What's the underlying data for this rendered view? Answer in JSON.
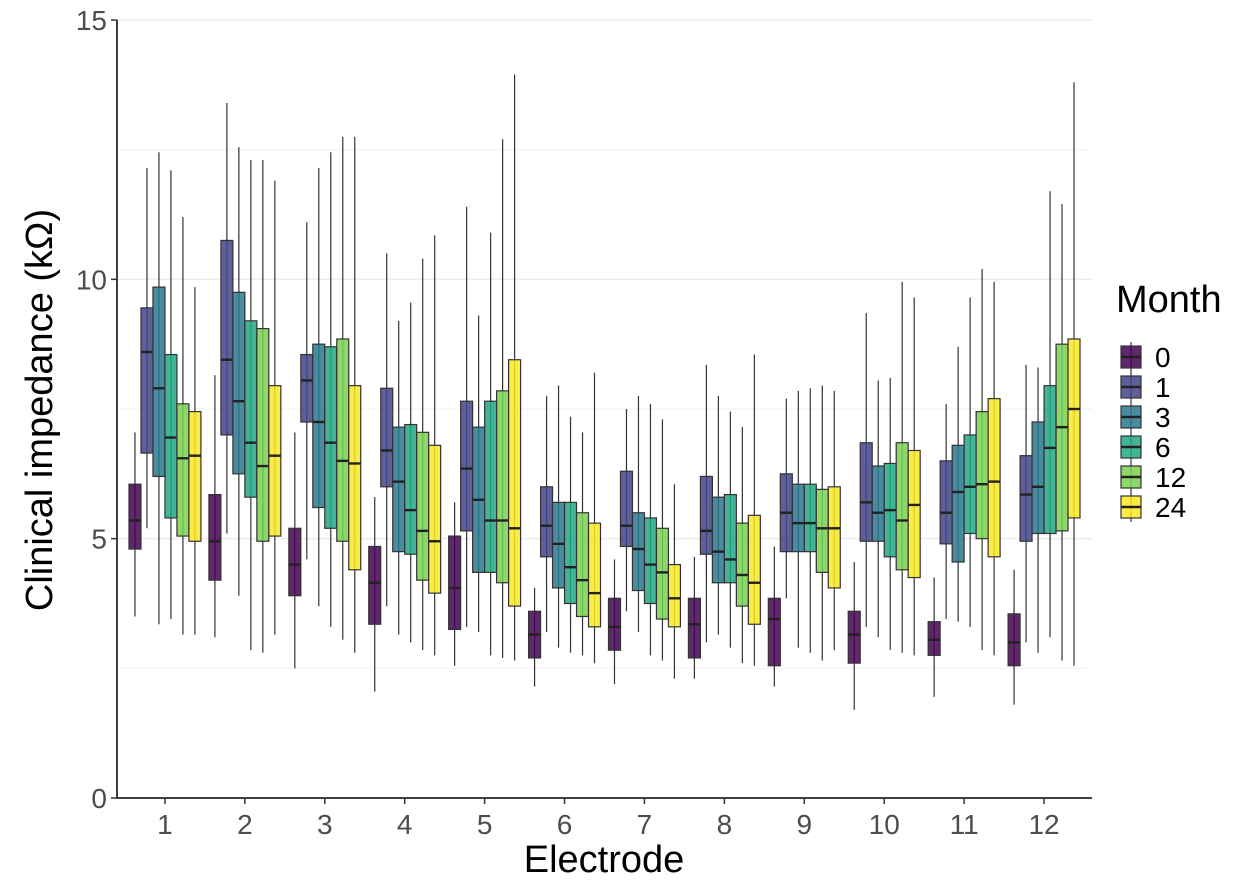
{
  "chart_data": {
    "type": "boxplot",
    "xlabel": "Electrode",
    "ylabel": "Clinical impedance (kΩ)",
    "ylim": [
      0,
      15
    ],
    "yticks": [
      "0",
      "5",
      "10",
      "15"
    ],
    "grid": "horizontal-major-and-minor",
    "categories": [
      "1",
      "2",
      "3",
      "4",
      "5",
      "6",
      "7",
      "8",
      "9",
      "10",
      "11",
      "12"
    ],
    "legend": {
      "title": "Month",
      "position": "right"
    },
    "series": [
      {
        "name": "0",
        "color": "#440154",
        "boxes": [
          [
            3.5,
            4.8,
            5.35,
            6.05,
            7.05
          ],
          [
            3.1,
            4.2,
            4.95,
            5.85,
            8.15
          ],
          [
            2.5,
            3.9,
            4.5,
            5.2,
            7.05
          ],
          [
            2.05,
            3.35,
            4.15,
            4.85,
            5.8
          ],
          [
            2.55,
            3.25,
            4.05,
            5.05,
            5.7
          ],
          [
            2.15,
            2.7,
            3.15,
            3.6,
            4.05
          ],
          [
            2.2,
            2.85,
            3.3,
            3.85,
            4.6
          ],
          [
            2.3,
            2.7,
            3.35,
            3.85,
            4.65
          ],
          [
            2.15,
            2.55,
            3.45,
            3.85,
            4.85
          ],
          [
            1.7,
            2.6,
            3.15,
            3.6,
            4.55
          ],
          [
            1.95,
            2.75,
            3.05,
            3.4,
            4.25
          ],
          [
            1.8,
            2.55,
            3.0,
            3.55,
            4.4
          ]
        ]
      },
      {
        "name": "1",
        "color": "#414487",
        "boxes": [
          [
            5.2,
            6.65,
            8.6,
            9.45,
            12.15
          ],
          [
            5.1,
            7.0,
            8.45,
            10.75,
            13.4
          ],
          [
            4.6,
            7.25,
            8.05,
            8.55,
            11.1
          ],
          [
            3.7,
            6.0,
            6.7,
            7.9,
            10.5
          ],
          [
            3.3,
            5.15,
            6.35,
            7.65,
            11.4
          ],
          [
            3.2,
            4.65,
            5.25,
            6.0,
            7.75
          ],
          [
            3.6,
            4.85,
            5.25,
            6.3,
            7.5
          ],
          [
            3.0,
            4.7,
            5.15,
            6.2,
            8.35
          ],
          [
            3.85,
            4.75,
            5.5,
            6.25,
            7.7
          ],
          [
            3.3,
            4.95,
            5.7,
            6.85,
            9.35
          ],
          [
            3.45,
            4.9,
            5.5,
            6.5,
            7.6
          ],
          [
            3.0,
            4.95,
            5.85,
            6.6,
            8.35
          ]
        ]
      },
      {
        "name": "3",
        "color": "#2a788e",
        "boxes": [
          [
            3.35,
            6.2,
            7.9,
            9.85,
            12.45
          ],
          [
            3.9,
            6.25,
            7.65,
            9.75,
            12.55
          ],
          [
            3.7,
            5.6,
            7.25,
            8.75,
            12.15
          ],
          [
            3.15,
            4.75,
            6.1,
            7.15,
            9.2
          ],
          [
            3.2,
            4.35,
            5.75,
            7.15,
            9.3
          ],
          [
            2.9,
            4.05,
            4.9,
            5.7,
            7.95
          ],
          [
            3.2,
            4.0,
            4.8,
            5.5,
            7.75
          ],
          [
            3.15,
            4.15,
            4.75,
            5.8,
            7.75
          ],
          [
            2.9,
            4.75,
            5.3,
            6.05,
            7.85
          ],
          [
            3.1,
            4.95,
            5.5,
            6.4,
            8.05
          ],
          [
            3.4,
            4.55,
            5.9,
            6.8,
            8.7
          ],
          [
            2.8,
            5.1,
            6.0,
            7.25,
            8.3
          ]
        ]
      },
      {
        "name": "6",
        "color": "#22a884",
        "boxes": [
          [
            3.45,
            5.4,
            6.95,
            8.55,
            12.1
          ],
          [
            2.85,
            5.8,
            6.85,
            9.2,
            12.3
          ],
          [
            3.3,
            5.2,
            6.85,
            8.7,
            12.45
          ],
          [
            3.0,
            4.7,
            5.55,
            7.2,
            9.55
          ],
          [
            2.75,
            4.35,
            5.35,
            7.65,
            10.9
          ],
          [
            2.8,
            3.75,
            4.45,
            5.7,
            7.35
          ],
          [
            2.75,
            3.75,
            4.5,
            5.4,
            7.6
          ],
          [
            2.9,
            4.15,
            4.6,
            5.85,
            7.45
          ],
          [
            2.8,
            4.75,
            5.3,
            6.05,
            7.9
          ],
          [
            2.85,
            4.65,
            5.55,
            6.45,
            8.1
          ],
          [
            3.3,
            5.1,
            6.0,
            7.0,
            9.65
          ],
          [
            3.1,
            5.1,
            6.75,
            7.95,
            11.7
          ]
        ]
      },
      {
        "name": "12",
        "color": "#7ad151",
        "boxes": [
          [
            3.15,
            5.05,
            6.55,
            7.6,
            11.2
          ],
          [
            2.8,
            4.95,
            6.4,
            9.05,
            12.3
          ],
          [
            3.05,
            4.95,
            6.5,
            8.85,
            12.75
          ],
          [
            2.85,
            4.2,
            5.15,
            7.05,
            10.4
          ],
          [
            2.7,
            4.15,
            5.35,
            7.85,
            12.7
          ],
          [
            2.75,
            3.5,
            4.2,
            5.5,
            7.05
          ],
          [
            2.65,
            3.45,
            4.35,
            5.2,
            7.3
          ],
          [
            2.6,
            3.7,
            4.3,
            5.3,
            7.15
          ],
          [
            2.65,
            4.35,
            5.2,
            5.95,
            7.95
          ],
          [
            2.8,
            4.4,
            5.35,
            6.85,
            9.95
          ],
          [
            2.85,
            5.0,
            6.05,
            7.45,
            10.2
          ],
          [
            2.65,
            5.15,
            7.15,
            8.75,
            11.45
          ]
        ]
      },
      {
        "name": "24",
        "color": "#fde725",
        "boxes": [
          [
            3.15,
            4.95,
            6.6,
            7.45,
            9.85
          ],
          [
            3.15,
            5.05,
            6.6,
            7.95,
            11.9
          ],
          [
            2.8,
            4.4,
            6.45,
            7.95,
            12.75
          ],
          [
            2.75,
            3.95,
            4.95,
            6.8,
            10.85
          ],
          [
            2.65,
            3.7,
            5.2,
            8.45,
            13.95
          ],
          [
            2.6,
            3.3,
            3.95,
            5.3,
            8.2
          ],
          [
            2.3,
            3.3,
            3.85,
            4.5,
            6.05
          ],
          [
            2.55,
            3.35,
            4.15,
            5.45,
            8.55
          ],
          [
            2.85,
            4.05,
            5.2,
            6.0,
            7.85
          ],
          [
            2.75,
            4.25,
            5.65,
            6.7,
            9.65
          ],
          [
            2.75,
            4.65,
            6.1,
            7.7,
            9.95
          ],
          [
            2.55,
            5.4,
            7.5,
            8.85,
            13.8
          ]
        ]
      }
    ]
  }
}
